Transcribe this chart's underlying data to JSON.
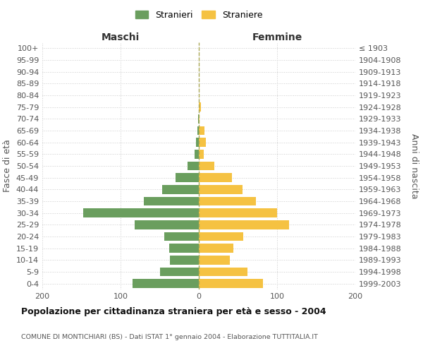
{
  "age_groups": [
    "100+",
    "95-99",
    "90-94",
    "85-89",
    "80-84",
    "75-79",
    "70-74",
    "65-69",
    "60-64",
    "55-59",
    "50-54",
    "45-49",
    "40-44",
    "35-39",
    "30-34",
    "25-29",
    "20-24",
    "15-19",
    "10-14",
    "5-9",
    "0-4"
  ],
  "birth_years": [
    "≤ 1903",
    "1904-1908",
    "1909-1913",
    "1914-1918",
    "1919-1923",
    "1924-1928",
    "1929-1933",
    "1934-1938",
    "1939-1943",
    "1944-1948",
    "1949-1953",
    "1954-1958",
    "1959-1963",
    "1964-1968",
    "1969-1973",
    "1974-1978",
    "1979-1983",
    "1984-1988",
    "1989-1993",
    "1994-1998",
    "1999-2003"
  ],
  "maschi": [
    0,
    0,
    0,
    0,
    0,
    0,
    1,
    2,
    4,
    5,
    14,
    30,
    47,
    70,
    148,
    82,
    44,
    38,
    37,
    50,
    85
  ],
  "femmine": [
    0,
    0,
    0,
    0,
    0,
    3,
    1,
    7,
    9,
    6,
    20,
    42,
    56,
    73,
    100,
    115,
    57,
    44,
    40,
    62,
    82
  ],
  "color_maschi": "#6a9e5e",
  "color_femmine": "#f5c242",
  "background_color": "#ffffff",
  "grid_color": "#cccccc",
  "title": "Popolazione per cittadinanza straniera per età e sesso - 2004",
  "subtitle": "COMUNE DI MONTICHIARI (BS) - Dati ISTAT 1° gennaio 2004 - Elaborazione TUTTITALIA.IT",
  "xlabel_left": "Maschi",
  "xlabel_right": "Femmine",
  "ylabel_left": "Fasce di età",
  "ylabel_right": "Anni di nascita",
  "legend_maschi": "Stranieri",
  "legend_femmine": "Straniere",
  "xlim": 200
}
